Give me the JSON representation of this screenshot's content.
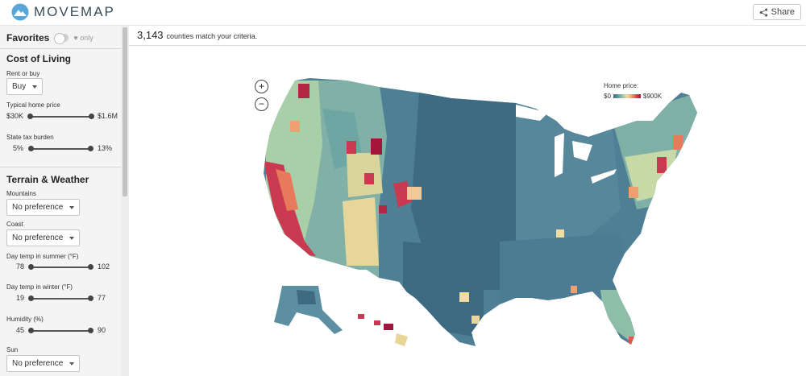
{
  "header": {
    "logo_text": "MOVEMAP",
    "share_label": "Share",
    "icons": {
      "logo": "movemap-logo-icon",
      "share": "share-icon"
    }
  },
  "sidebar": {
    "favorites": {
      "title": "Favorites",
      "only_label": "♥ only"
    },
    "cost_of_living": {
      "title": "Cost of Living",
      "rent_or_buy": {
        "label": "Rent or buy",
        "value": "Buy"
      },
      "home_price": {
        "label": "Typical home price",
        "min": "$30K",
        "max": "$1.6M"
      },
      "state_tax": {
        "label": "State tax burden",
        "min": "5%",
        "max": "13%"
      }
    },
    "terrain": {
      "title": "Terrain & Weather",
      "mountains": {
        "label": "Mountains",
        "value": "No preference"
      },
      "coast": {
        "label": "Coast",
        "value": "No preference"
      },
      "summer_temp": {
        "label": "Day temp in summer (°F)",
        "min": "78",
        "max": "102"
      },
      "winter_temp": {
        "label": "Day temp in winter (°F)",
        "min": "19",
        "max": "77"
      },
      "humidity": {
        "label": "Humidity (%)",
        "min": "45",
        "max": "90"
      },
      "sun": {
        "label": "Sun",
        "value": "No preference"
      }
    }
  },
  "main": {
    "count": "3,143",
    "count_text": "counties match your criteria.",
    "zoom_in": "+",
    "zoom_out": "−",
    "legend": {
      "title": "Home price:",
      "min": "$0",
      "max": "$900K"
    }
  },
  "colors": {
    "low": "#3f6d85",
    "mid_low": "#6fa3a6",
    "mid": "#9cc6a8",
    "mid_high": "#f0dca0",
    "high": "#f0a070",
    "very_high": "#c93a50"
  }
}
